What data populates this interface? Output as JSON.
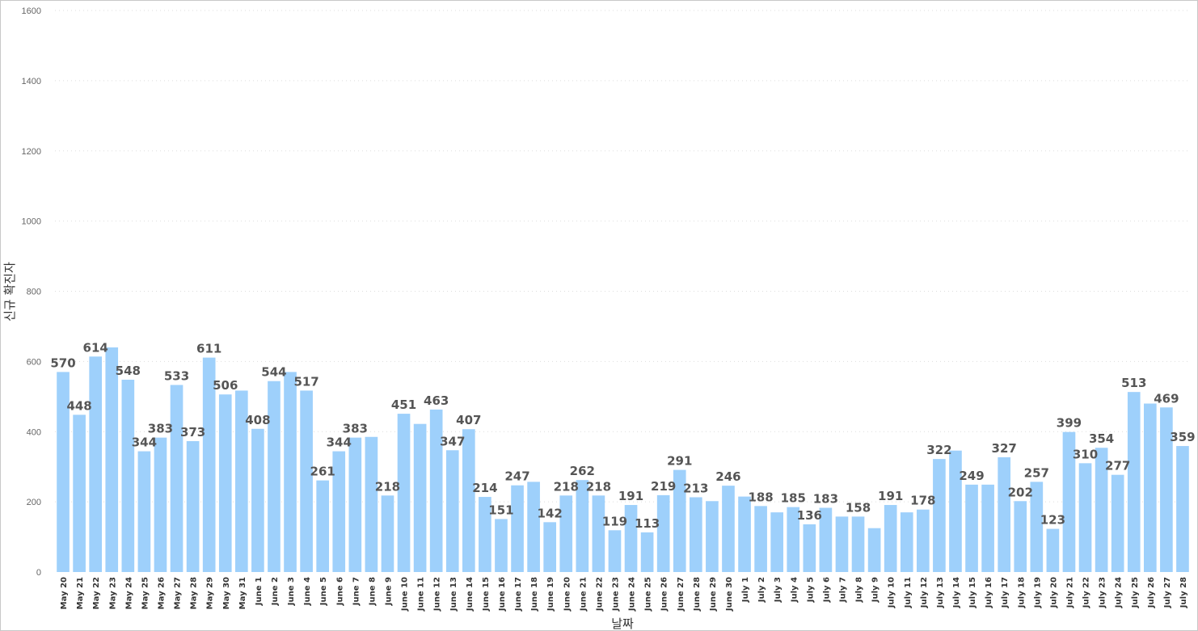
{
  "chart_data": {
    "type": "bar",
    "xlabel": "날짜",
    "ylabel": "신규 확진자",
    "ylim": [
      0,
      1600
    ],
    "yticks": [
      0,
      200,
      400,
      600,
      800,
      1000,
      1200,
      1400,
      1600
    ],
    "grid": true,
    "bar_color": "#9ed0fb",
    "highlight_color": "#118dff",
    "highlight_index": 70,
    "categories": [
      "May 20",
      "May 21",
      "May 22",
      "May 23",
      "May 24",
      "May 25",
      "May 26",
      "May 27",
      "May 28",
      "May 29",
      "May 30",
      "May 31",
      "June 1",
      "June 2",
      "June 3",
      "June 4",
      "June 5",
      "June 6",
      "June 7",
      "June 8",
      "June 9",
      "June 10",
      "June 11",
      "June 12",
      "June 13",
      "June 14",
      "June 15",
      "June 16",
      "June 17",
      "June 18",
      "June 19",
      "June 20",
      "June 21",
      "June 22",
      "June 23",
      "June 24",
      "June 25",
      "June 26",
      "June 27",
      "June 28",
      "June 29",
      "June 30",
      "July 1",
      "July 2",
      "July 3",
      "July 4",
      "July 5",
      "July 6",
      "July 7",
      "July 8",
      "July 9",
      "July 10",
      "July 11",
      "July 12",
      "July 13",
      "July 14",
      "July 15",
      "July 16",
      "July 17",
      "July 18",
      "July 19",
      "July 20",
      "July 21",
      "July 22",
      "July 23",
      "July 24",
      "July 25",
      "July 26",
      "July 27",
      "July 28"
    ],
    "values": [
      570,
      448,
      614,
      640,
      548,
      344,
      383,
      533,
      373,
      611,
      506,
      517,
      408,
      544,
      570,
      517,
      261,
      344,
      383,
      385,
      218,
      451,
      422,
      463,
      347,
      407,
      214,
      151,
      247,
      257,
      142,
      218,
      262,
      218,
      119,
      191,
      113,
      219,
      291,
      213,
      202,
      246,
      215,
      188,
      170,
      185,
      136,
      183,
      158,
      158,
      125,
      191,
      170,
      178,
      322,
      346,
      249,
      249,
      327,
      202,
      257,
      123,
      399,
      310,
      354,
      277,
      513,
      480,
      469,
      359
    ],
    "data_labels": [
      {
        "index": 0,
        "text": "570"
      },
      {
        "index": 1,
        "text": "448"
      },
      {
        "index": 2,
        "text": "614"
      },
      {
        "index": 4,
        "text": "548"
      },
      {
        "index": 5,
        "text": "344"
      },
      {
        "index": 6,
        "text": "383"
      },
      {
        "index": 7,
        "text": "533"
      },
      {
        "index": 8,
        "text": "373"
      },
      {
        "index": 9,
        "text": "611"
      },
      {
        "index": 10,
        "text": "506"
      },
      {
        "index": 12,
        "text": "408"
      },
      {
        "index": 13,
        "text": "544"
      },
      {
        "index": 15,
        "text": "517"
      },
      {
        "index": 16,
        "text": "261"
      },
      {
        "index": 17,
        "text": "344"
      },
      {
        "index": 18,
        "text": "383"
      },
      {
        "index": 20,
        "text": "218"
      },
      {
        "index": 21,
        "text": "451"
      },
      {
        "index": 23,
        "text": "463"
      },
      {
        "index": 24,
        "text": "347"
      },
      {
        "index": 25,
        "text": "407"
      },
      {
        "index": 26,
        "text": "214"
      },
      {
        "index": 27,
        "text": "151"
      },
      {
        "index": 28,
        "text": "247"
      },
      {
        "index": 30,
        "text": "142"
      },
      {
        "index": 31,
        "text": "218"
      },
      {
        "index": 32,
        "text": "262"
      },
      {
        "index": 33,
        "text": "218"
      },
      {
        "index": 34,
        "text": "119"
      },
      {
        "index": 35,
        "text": "191"
      },
      {
        "index": 36,
        "text": "113"
      },
      {
        "index": 37,
        "text": "219"
      },
      {
        "index": 38,
        "text": "291"
      },
      {
        "index": 39,
        "text": "213"
      },
      {
        "index": 41,
        "text": "246"
      },
      {
        "index": 43,
        "text": "188"
      },
      {
        "index": 45,
        "text": "185"
      },
      {
        "index": 46,
        "text": "136"
      },
      {
        "index": 47,
        "text": "183"
      },
      {
        "index": 49,
        "text": "158"
      },
      {
        "index": 51,
        "text": "191"
      },
      {
        "index": 53,
        "text": "178"
      },
      {
        "index": 54,
        "text": "322"
      },
      {
        "index": 56,
        "text": "249"
      },
      {
        "index": 58,
        "text": "327"
      },
      {
        "index": 59,
        "text": "202"
      },
      {
        "index": 60,
        "text": "257"
      },
      {
        "index": 61,
        "text": "123"
      },
      {
        "index": 62,
        "text": "399"
      },
      {
        "index": 63,
        "text": "310"
      },
      {
        "index": 64,
        "text": "354"
      },
      {
        "index": 65,
        "text": "277"
      },
      {
        "index": 66,
        "text": "513"
      },
      {
        "index": 68,
        "text": "469"
      },
      {
        "index": 69,
        "text": "359"
      }
    ]
  }
}
